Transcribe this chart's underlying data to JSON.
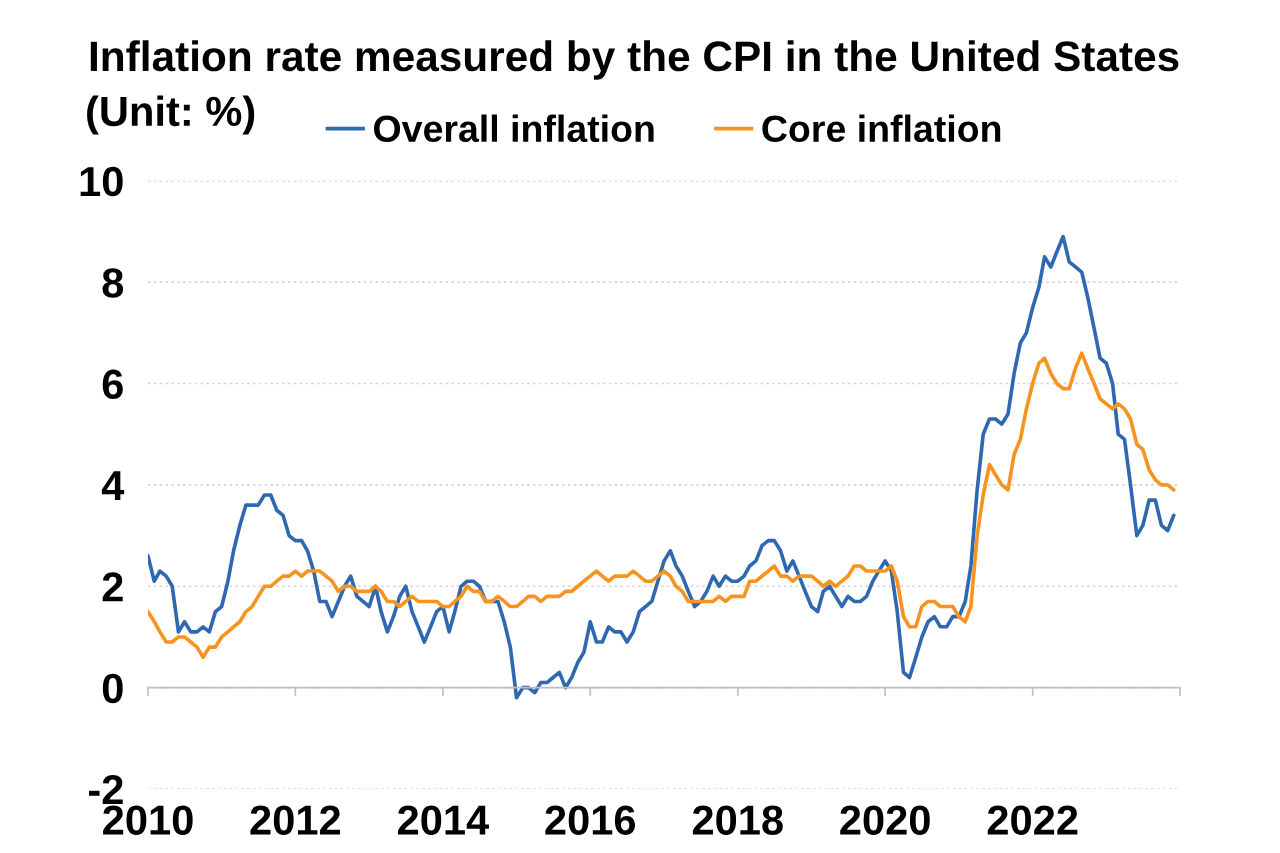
{
  "chart_data": {
    "type": "line",
    "title": "Inflation rate measured by the CPI in the United States",
    "ylabel": "(Unit: %)",
    "x": [
      "2010-01",
      "2010-02",
      "2010-03",
      "2010-04",
      "2010-05",
      "2010-06",
      "2010-07",
      "2010-08",
      "2010-09",
      "2010-10",
      "2010-11",
      "2010-12",
      "2011-01",
      "2011-02",
      "2011-03",
      "2011-04",
      "2011-05",
      "2011-06",
      "2011-07",
      "2011-08",
      "2011-09",
      "2011-10",
      "2011-11",
      "2011-12",
      "2012-01",
      "2012-02",
      "2012-03",
      "2012-04",
      "2012-05",
      "2012-06",
      "2012-07",
      "2012-08",
      "2012-09",
      "2012-10",
      "2012-11",
      "2012-12",
      "2013-01",
      "2013-02",
      "2013-03",
      "2013-04",
      "2013-05",
      "2013-06",
      "2013-07",
      "2013-08",
      "2013-09",
      "2013-10",
      "2013-11",
      "2013-12",
      "2014-01",
      "2014-02",
      "2014-03",
      "2014-04",
      "2014-05",
      "2014-06",
      "2014-07",
      "2014-08",
      "2014-09",
      "2014-10",
      "2014-11",
      "2014-12",
      "2015-01",
      "2015-02",
      "2015-03",
      "2015-04",
      "2015-05",
      "2015-06",
      "2015-07",
      "2015-08",
      "2015-09",
      "2015-10",
      "2015-11",
      "2015-12",
      "2016-01",
      "2016-02",
      "2016-03",
      "2016-04",
      "2016-05",
      "2016-06",
      "2016-07",
      "2016-08",
      "2016-09",
      "2016-10",
      "2016-11",
      "2016-12",
      "2017-01",
      "2017-02",
      "2017-03",
      "2017-04",
      "2017-05",
      "2017-06",
      "2017-07",
      "2017-08",
      "2017-09",
      "2017-10",
      "2017-11",
      "2017-12",
      "2018-01",
      "2018-02",
      "2018-03",
      "2018-04",
      "2018-05",
      "2018-06",
      "2018-07",
      "2018-08",
      "2018-09",
      "2018-10",
      "2018-11",
      "2018-12",
      "2019-01",
      "2019-02",
      "2019-03",
      "2019-04",
      "2019-05",
      "2019-06",
      "2019-07",
      "2019-08",
      "2019-09",
      "2019-10",
      "2019-11",
      "2019-12",
      "2020-01",
      "2020-02",
      "2020-03",
      "2020-04",
      "2020-05",
      "2020-06",
      "2020-07",
      "2020-08",
      "2020-09",
      "2020-10",
      "2020-11",
      "2020-12",
      "2021-01",
      "2021-02",
      "2021-03",
      "2021-04",
      "2021-05",
      "2021-06",
      "2021-07",
      "2021-08",
      "2021-09",
      "2021-10",
      "2021-11",
      "2021-12",
      "2022-01",
      "2022-02",
      "2022-03",
      "2022-04",
      "2022-05",
      "2022-06",
      "2022-07",
      "2022-08",
      "2022-09",
      "2022-10",
      "2022-11",
      "2022-12",
      "2023-01",
      "2023-02",
      "2023-03",
      "2023-04",
      "2023-05",
      "2023-06",
      "2023-07",
      "2023-08",
      "2023-09",
      "2023-10",
      "2023-11",
      "2023-12"
    ],
    "series": [
      {
        "name": "Overall inflation",
        "color": "#2f68b0",
        "values": [
          2.6,
          2.1,
          2.3,
          2.2,
          2.0,
          1.1,
          1.3,
          1.1,
          1.1,
          1.2,
          1.1,
          1.5,
          1.6,
          2.1,
          2.7,
          3.2,
          3.6,
          3.6,
          3.6,
          3.8,
          3.8,
          3.5,
          3.4,
          3.0,
          2.9,
          2.9,
          2.7,
          2.3,
          1.7,
          1.7,
          1.4,
          1.7,
          2.0,
          2.2,
          1.8,
          1.7,
          1.6,
          2.0,
          1.5,
          1.1,
          1.4,
          1.8,
          2.0,
          1.5,
          1.2,
          0.9,
          1.2,
          1.5,
          1.6,
          1.1,
          1.5,
          2.0,
          2.1,
          2.1,
          2.0,
          1.7,
          1.7,
          1.7,
          1.3,
          0.8,
          -0.2,
          0.0,
          0.0,
          -0.1,
          0.1,
          0.1,
          0.2,
          0.3,
          0.0,
          0.2,
          0.5,
          0.7,
          1.3,
          0.9,
          0.9,
          1.2,
          1.1,
          1.1,
          0.9,
          1.1,
          1.5,
          1.6,
          1.7,
          2.1,
          2.5,
          2.7,
          2.4,
          2.2,
          1.9,
          1.6,
          1.7,
          1.9,
          2.2,
          2.0,
          2.2,
          2.1,
          2.1,
          2.2,
          2.4,
          2.5,
          2.8,
          2.9,
          2.9,
          2.7,
          2.3,
          2.5,
          2.2,
          1.9,
          1.6,
          1.5,
          1.9,
          2.0,
          1.8,
          1.6,
          1.8,
          1.7,
          1.7,
          1.8,
          2.1,
          2.3,
          2.5,
          2.3,
          1.5,
          0.3,
          0.2,
          0.6,
          1.0,
          1.3,
          1.4,
          1.2,
          1.2,
          1.4,
          1.4,
          1.7,
          2.4,
          3.9,
          5.0,
          5.3,
          5.3,
          5.2,
          5.4,
          6.2,
          6.8,
          7.0,
          7.5,
          7.9,
          8.5,
          8.3,
          8.6,
          8.9,
          8.4,
          8.3,
          8.2,
          7.7,
          7.1,
          6.5,
          6.4,
          6.0,
          5.0,
          4.9,
          4.0,
          3.0,
          3.2,
          3.7,
          3.7,
          3.2,
          3.1,
          3.4
        ]
      },
      {
        "name": "Core inflation",
        "color": "#f7931e",
        "values": [
          1.5,
          1.3,
          1.1,
          0.9,
          0.9,
          1.0,
          1.0,
          0.9,
          0.8,
          0.6,
          0.8,
          0.8,
          1.0,
          1.1,
          1.2,
          1.3,
          1.5,
          1.6,
          1.8,
          2.0,
          2.0,
          2.1,
          2.2,
          2.2,
          2.3,
          2.2,
          2.3,
          2.3,
          2.3,
          2.2,
          2.1,
          1.9,
          2.0,
          2.0,
          1.9,
          1.9,
          1.9,
          2.0,
          1.9,
          1.7,
          1.7,
          1.6,
          1.7,
          1.8,
          1.7,
          1.7,
          1.7,
          1.7,
          1.6,
          1.6,
          1.7,
          1.8,
          2.0,
          1.9,
          1.9,
          1.7,
          1.7,
          1.8,
          1.7,
          1.6,
          1.6,
          1.7,
          1.8,
          1.8,
          1.7,
          1.8,
          1.8,
          1.8,
          1.9,
          1.9,
          2.0,
          2.1,
          2.2,
          2.3,
          2.2,
          2.1,
          2.2,
          2.2,
          2.2,
          2.3,
          2.2,
          2.1,
          2.1,
          2.2,
          2.3,
          2.2,
          2.0,
          1.9,
          1.7,
          1.7,
          1.7,
          1.7,
          1.7,
          1.8,
          1.7,
          1.8,
          1.8,
          1.8,
          2.1,
          2.1,
          2.2,
          2.3,
          2.4,
          2.2,
          2.2,
          2.1,
          2.2,
          2.2,
          2.2,
          2.1,
          2.0,
          2.1,
          2.0,
          2.1,
          2.2,
          2.4,
          2.4,
          2.3,
          2.3,
          2.3,
          2.3,
          2.4,
          2.1,
          1.4,
          1.2,
          1.2,
          1.6,
          1.7,
          1.7,
          1.6,
          1.6,
          1.6,
          1.4,
          1.3,
          1.6,
          3.0,
          3.8,
          4.4,
          4.2,
          4.0,
          3.9,
          4.6,
          4.9,
          5.5,
          6.0,
          6.4,
          6.5,
          6.2,
          6.0,
          5.9,
          5.9,
          6.3,
          6.6,
          6.3,
          6.0,
          5.7,
          5.6,
          5.5,
          5.6,
          5.5,
          5.3,
          4.8,
          4.7,
          4.3,
          4.1,
          4.0,
          4.0,
          3.9
        ]
      }
    ],
    "xlim": [
      "2010",
      "2024"
    ],
    "xticks": [
      "2010",
      "2012",
      "2014",
      "2016",
      "2018",
      "2020",
      "2022",
      {
        "value": "2024",
        "label": null
      }
    ],
    "ylim": [
      -2,
      10
    ],
    "yticks": [
      -2,
      0,
      2,
      4,
      6,
      8,
      10
    ],
    "grid": "y",
    "legend": "top",
    "line_style": "solid"
  }
}
